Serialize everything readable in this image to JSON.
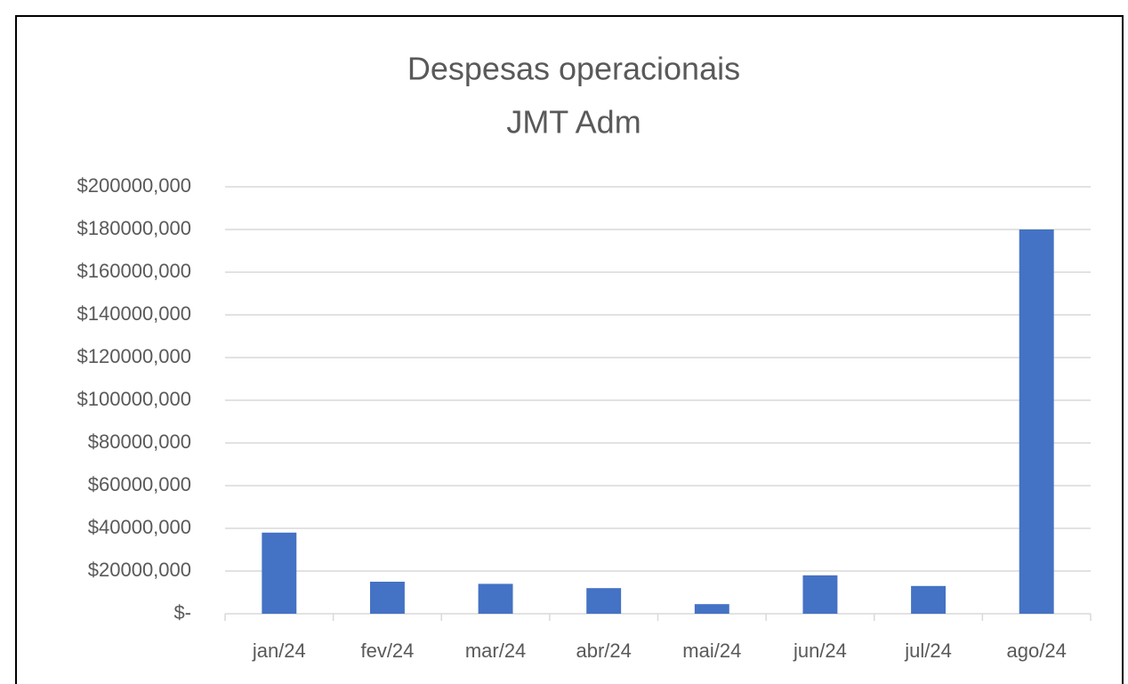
{
  "chart_data": {
    "type": "bar",
    "title": "Despesas operacionais",
    "subtitle": "JMT Adm",
    "categories": [
      "jan/24",
      "fev/24",
      "mar/24",
      "abr/24",
      "mai/24",
      "jun/24",
      "jul/24",
      "ago/24"
    ],
    "values": [
      38000,
      15000,
      14000,
      12000,
      4500,
      18000,
      13000,
      180000
    ],
    "color": "#4472c4",
    "ylim": [
      0,
      200000
    ],
    "yticks": [
      {
        "value": 0,
        "label": "$-"
      },
      {
        "value": 20000,
        "label": "$20000,000"
      },
      {
        "value": 40000,
        "label": "$40000,000"
      },
      {
        "value": 60000,
        "label": "$60000,000"
      },
      {
        "value": 80000,
        "label": "$80000,000"
      },
      {
        "value": 100000,
        "label": "$100000,000"
      },
      {
        "value": 120000,
        "label": "$120000,000"
      },
      {
        "value": 140000,
        "label": "$140000,000"
      },
      {
        "value": 160000,
        "label": "$160000,000"
      },
      {
        "value": 180000,
        "label": "$180000,000"
      },
      {
        "value": 200000,
        "label": "$200000,000"
      }
    ],
    "grid": true
  }
}
